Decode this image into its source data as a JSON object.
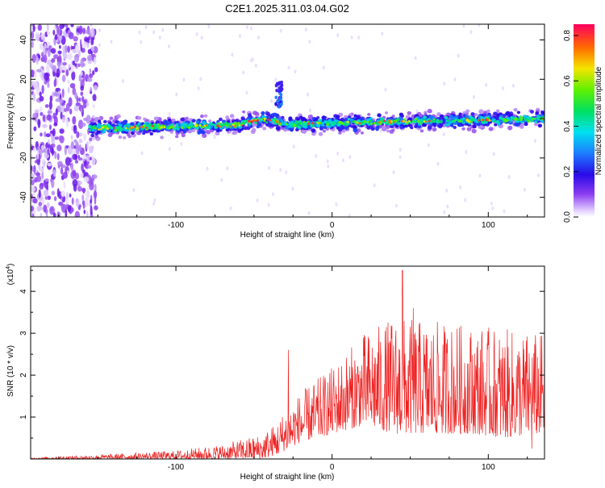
{
  "title": "C2E1.2025.311.03.04.G02",
  "colors": {
    "accent_line": "#ee2222",
    "frame": "#000000",
    "background": "#ffffff"
  },
  "chart_data": [
    {
      "type": "heatmap",
      "title": "C2E1.2025.311.03.04.G02",
      "xlabel": "Height of straight line (km)",
      "ylabel": "Frequency (Hz)",
      "xlim": [
        -193,
        136
      ],
      "ylim": [
        -50,
        48
      ],
      "x_ticks": [
        -100,
        0,
        100
      ],
      "y_ticks": [
        -40,
        -20,
        0,
        20,
        40
      ],
      "colorbar": {
        "label": "Normalized spectral amplitude",
        "range": [
          0,
          0.85
        ],
        "ticks": [
          0.0,
          0.2,
          0.4,
          0.6,
          0.8
        ]
      },
      "features": {
        "noise_region_x": [
          -193,
          -157
        ],
        "band_start_x": -157,
        "band_center_start_hz": -5,
        "band_center_end_hz": 0,
        "burst": {
          "x": -34,
          "hz": 19
        }
      }
    },
    {
      "type": "line",
      "xlabel": "Height of straight line (km)",
      "ylabel": "SNR (10 * v/v)",
      "multiplier": "(x10",
      "multiplier_exp": "4",
      "xlim": [
        -193,
        136
      ],
      "ylim": [
        0,
        4.6
      ],
      "x_ticks": [
        -100,
        0,
        100
      ],
      "y_ticks": [
        1,
        2,
        3,
        4
      ],
      "envelope": [
        {
          "x": -193,
          "min": 0.0,
          "max": 0.03
        },
        {
          "x": -150,
          "min": 0.0,
          "max": 0.1
        },
        {
          "x": -100,
          "min": 0.0,
          "max": 0.2
        },
        {
          "x": -70,
          "min": 0.0,
          "max": 0.35
        },
        {
          "x": -45,
          "min": 0.0,
          "max": 0.6
        },
        {
          "x": -35,
          "min": 0.1,
          "max": 0.9
        },
        {
          "x": -30,
          "min": 0.2,
          "max": 1.2
        },
        {
          "x": -20,
          "min": 0.4,
          "max": 1.6
        },
        {
          "x": 0,
          "min": 0.6,
          "max": 2.2
        },
        {
          "x": 20,
          "min": 0.8,
          "max": 3.0
        },
        {
          "x": 40,
          "min": 0.6,
          "max": 3.4
        },
        {
          "x": 60,
          "min": 0.6,
          "max": 3.3
        },
        {
          "x": 90,
          "min": 0.6,
          "max": 3.2
        },
        {
          "x": 110,
          "min": 0.5,
          "max": 3.1
        },
        {
          "x": 136,
          "min": 0.6,
          "max": 3.0
        }
      ],
      "spikes": [
        {
          "x": -28,
          "value": 2.6
        },
        {
          "x": 45,
          "value": 4.5
        },
        {
          "x": 52,
          "value": 3.6
        },
        {
          "x": 128,
          "value": 0.25
        }
      ]
    }
  ]
}
